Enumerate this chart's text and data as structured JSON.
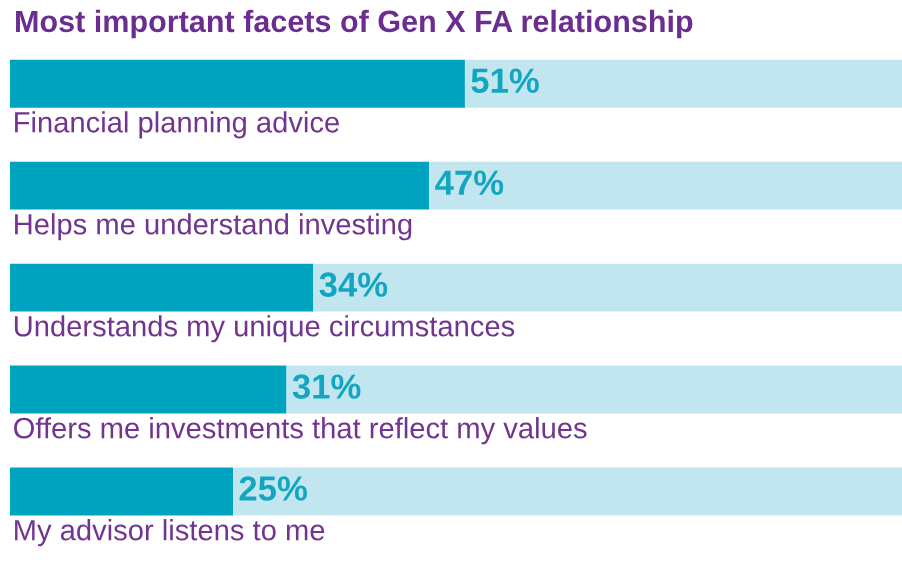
{
  "chart_data": {
    "type": "bar",
    "orientation": "horizontal",
    "stacked": true,
    "xlim": [
      0,
      100
    ],
    "tick_labels": false,
    "title": "Most important facets of Gen X FA relationship",
    "categories": [
      "Financial planning advice",
      "Helps me understand investing",
      "Understands my unique circumstances",
      "Offers me investments that reflect my values",
      "My advisor listens to me"
    ],
    "series": [
      {
        "color": "#00a3bf",
        "values": [
          51,
          47,
          34,
          31,
          25
        ],
        "value_labels": [
          "51%",
          "47%",
          "34%",
          "31%",
          "25%"
        ]
      },
      {
        "color": "#c2e6f0",
        "values": [
          49,
          53,
          66,
          69,
          75
        ]
      }
    ],
    "legend": false
  }
}
